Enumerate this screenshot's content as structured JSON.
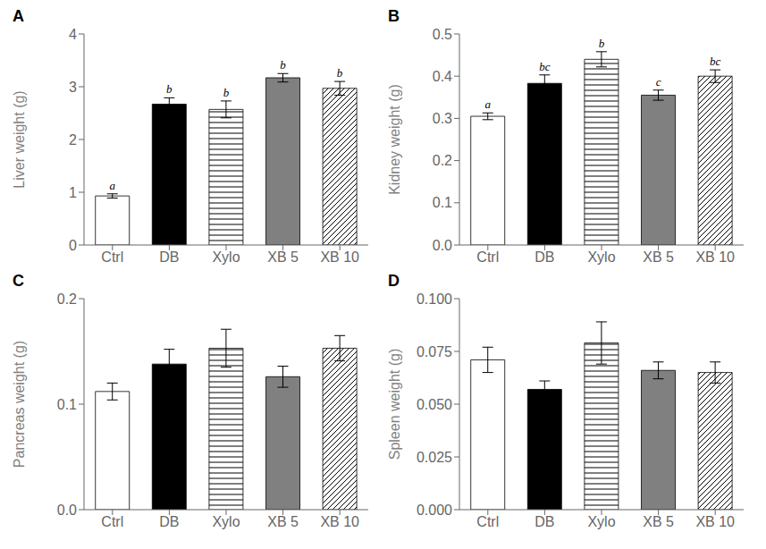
{
  "chart_data": [
    {
      "type": "bar",
      "title": "A",
      "ylabel": "Liver weight (g)",
      "categories": [
        "Ctrl",
        "DB",
        "Xylo",
        "XB 5",
        "XB 10"
      ],
      "values": [
        0.93,
        2.67,
        2.57,
        3.17,
        2.97
      ],
      "errors": [
        0.04,
        0.12,
        0.16,
        0.08,
        0.13
      ],
      "annotations": [
        "a",
        "b",
        "b",
        "b",
        "b"
      ],
      "colors": [
        "white",
        "black",
        "white",
        "#808080",
        "white"
      ],
      "ylim": [
        0,
        4
      ],
      "yticks": [
        0,
        1,
        2,
        3,
        4
      ],
      "grid": false
    },
    {
      "type": "bar",
      "title": "B",
      "ylabel": "Kidney weight (g)",
      "categories": [
        "Ctrl",
        "DB",
        "Xylo",
        "XB 5",
        "XB 10"
      ],
      "values": [
        0.305,
        0.383,
        0.44,
        0.355,
        0.4
      ],
      "errors": [
        0.008,
        0.02,
        0.018,
        0.012,
        0.015
      ],
      "annotations": [
        "a",
        "bc",
        "b",
        "c",
        "bc"
      ],
      "colors": [
        "white",
        "black",
        "white",
        "#808080",
        "white"
      ],
      "ylim": [
        0,
        0.5
      ],
      "yticks": [
        {
          "value": 0,
          "label": "0.0"
        },
        0.1,
        0.2,
        0.3,
        0.4,
        0.5
      ],
      "grid": false
    },
    {
      "type": "bar",
      "title": "C",
      "ylabel": "Pancreas weight (g)",
      "categories": [
        "Ctrl",
        "DB",
        "Xylo",
        "XB 5",
        "XB 10"
      ],
      "values": [
        0.112,
        0.138,
        0.153,
        0.126,
        0.153
      ],
      "errors": [
        0.008,
        0.014,
        0.018,
        0.01,
        0.012
      ],
      "colors": [
        "white",
        "black",
        "white",
        "#808080",
        "white"
      ],
      "ylim": [
        0,
        0.2
      ],
      "yticks": [
        {
          "value": 0,
          "label": "0.0"
        },
        0.1,
        0.2
      ],
      "grid": false
    },
    {
      "type": "bar",
      "title": "D",
      "ylabel": "Spleen weight (g)",
      "categories": [
        "Ctrl",
        "DB",
        "Xylo",
        "XB 5",
        "XB 10"
      ],
      "values": [
        0.071,
        0.057,
        0.079,
        0.066,
        0.065
      ],
      "errors": [
        0.006,
        0.004,
        0.01,
        0.004,
        0.005
      ],
      "colors": [
        "white",
        "black",
        "white",
        "#808080",
        "white"
      ],
      "ylim": [
        0,
        0.1
      ],
      "yticks": [
        {
          "value": 0,
          "label": "0.000"
        },
        0.025,
        {
          "value": 0.05,
          "label": "0.050"
        },
        0.075,
        {
          "value": 0.1,
          "label": "0.100"
        }
      ],
      "grid": false
    }
  ]
}
